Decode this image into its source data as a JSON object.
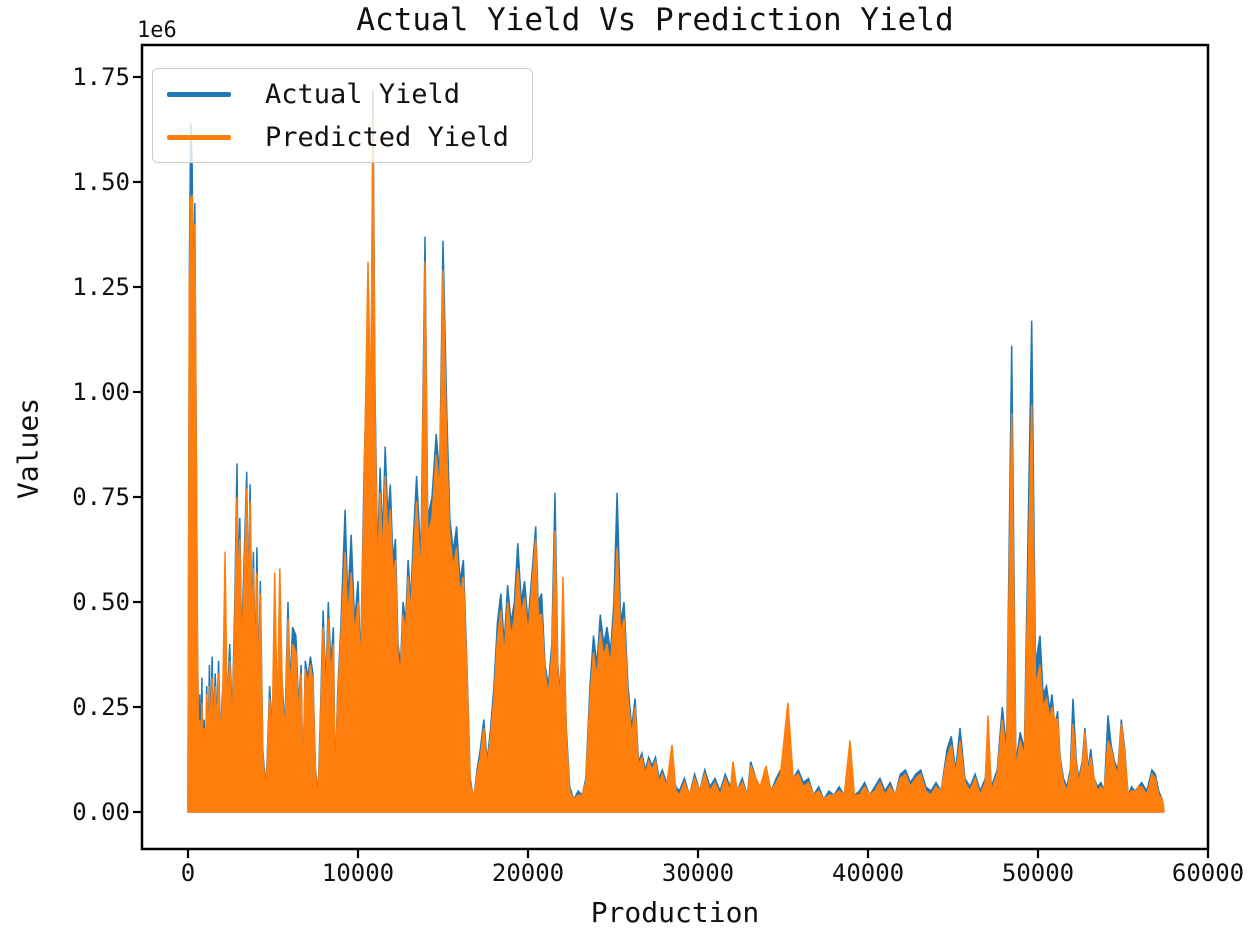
{
  "chart_data": {
    "type": "line",
    "title": "Actual Yield Vs Prediction Yield",
    "xlabel": "Production",
    "ylabel": "Values",
    "y_offset_label": "1e6",
    "y_unit_multiplier": 1000000,
    "grid": false,
    "x_ticks": [
      0,
      10000,
      20000,
      30000,
      40000,
      50000,
      60000
    ],
    "x_tick_labels": [
      "0",
      "10000",
      "20000",
      "30000",
      "40000",
      "50000",
      "60000"
    ],
    "y_ticks": [
      0,
      0.25,
      0.5,
      0.75,
      1.0,
      1.25,
      1.5,
      1.75
    ],
    "y_tick_labels": [
      "0.00",
      "0.25",
      "0.50",
      "0.75",
      "1.00",
      "1.25",
      "1.50",
      "1.75"
    ],
    "xlim": [
      -2870,
      60270
    ],
    "ylim": [
      -0.087,
      1.827
    ],
    "legend": {
      "position": "upper left",
      "entries": [
        {
          "label": "Actual Yield",
          "color": "#1f77b4"
        },
        {
          "label": "Predicted Yield",
          "color": "#ff7f0e"
        }
      ]
    },
    "series_names": [
      "Actual Yield",
      "Predicted Yield"
    ],
    "points_format": "[production_index, actual_yield_1e6, predicted_yield_1e6]",
    "points": [
      [
        0,
        0.05,
        0.04
      ],
      [
        80,
        1.3,
        1.25
      ],
      [
        160,
        1.64,
        1.46
      ],
      [
        240,
        1.55,
        1.47
      ],
      [
        320,
        1.2,
        1.18
      ],
      [
        400,
        1.45,
        1.4
      ],
      [
        480,
        0.9,
        0.88
      ],
      [
        560,
        0.4,
        0.38
      ],
      [
        640,
        0.12,
        0.1
      ],
      [
        700,
        0.28,
        0.22
      ],
      [
        760,
        0.08,
        0.07
      ],
      [
        820,
        0.32,
        0.26
      ],
      [
        880,
        0.12,
        0.11
      ],
      [
        950,
        0.22,
        0.2
      ],
      [
        1020,
        0.08,
        0.07
      ],
      [
        1100,
        0.3,
        0.28
      ],
      [
        1180,
        0.15,
        0.14
      ],
      [
        1260,
        0.35,
        0.3
      ],
      [
        1340,
        0.18,
        0.16
      ],
      [
        1420,
        0.37,
        0.32
      ],
      [
        1500,
        0.2,
        0.18
      ],
      [
        1600,
        0.33,
        0.3
      ],
      [
        1700,
        0.22,
        0.2
      ],
      [
        1800,
        0.36,
        0.33
      ],
      [
        1900,
        0.18,
        0.17
      ],
      [
        2050,
        0.3,
        0.28
      ],
      [
        2180,
        0.36,
        0.62
      ],
      [
        2300,
        0.25,
        0.24
      ],
      [
        2450,
        0.4,
        0.36
      ],
      [
        2600,
        0.22,
        0.2
      ],
      [
        2750,
        0.5,
        0.45
      ],
      [
        2880,
        0.83,
        0.75
      ],
      [
        2950,
        0.55,
        0.5
      ],
      [
        3050,
        0.7,
        0.65
      ],
      [
        3150,
        0.4,
        0.38
      ],
      [
        3300,
        0.6,
        0.55
      ],
      [
        3450,
        0.81,
        0.77
      ],
      [
        3550,
        0.5,
        0.48
      ],
      [
        3650,
        0.78,
        0.74
      ],
      [
        3750,
        0.45,
        0.42
      ],
      [
        3850,
        0.62,
        0.58
      ],
      [
        3950,
        0.35,
        0.33
      ],
      [
        4050,
        0.63,
        0.57
      ],
      [
        4150,
        0.3,
        0.28
      ],
      [
        4250,
        0.55,
        0.52
      ],
      [
        4400,
        0.15,
        0.13
      ],
      [
        4550,
        0.06,
        0.05
      ],
      [
        4650,
        0.12,
        0.11
      ],
      [
        4800,
        0.3,
        0.27
      ],
      [
        4950,
        0.2,
        0.18
      ],
      [
        5100,
        0.4,
        0.57
      ],
      [
        5250,
        0.25,
        0.23
      ],
      [
        5400,
        0.42,
        0.58
      ],
      [
        5550,
        0.3,
        0.28
      ],
      [
        5700,
        0.2,
        0.18
      ],
      [
        5880,
        0.5,
        0.46
      ],
      [
        6000,
        0.3,
        0.28
      ],
      [
        6150,
        0.44,
        0.4
      ],
      [
        6350,
        0.42,
        0.38
      ],
      [
        6500,
        0.25,
        0.23
      ],
      [
        6650,
        0.35,
        0.33
      ],
      [
        6760,
        0.07,
        0.06
      ],
      [
        6900,
        0.36,
        0.34
      ],
      [
        7050,
        0.32,
        0.3
      ],
      [
        7200,
        0.37,
        0.35
      ],
      [
        7350,
        0.33,
        0.31
      ],
      [
        7500,
        0.1,
        0.09
      ],
      [
        7650,
        0.04,
        0.03
      ],
      [
        7800,
        0.25,
        0.22
      ],
      [
        7950,
        0.48,
        0.44
      ],
      [
        8100,
        0.3,
        0.28
      ],
      [
        8250,
        0.5,
        0.46
      ],
      [
        8400,
        0.35,
        0.32
      ],
      [
        8550,
        0.44,
        0.4
      ],
      [
        8650,
        0.06,
        0.05
      ],
      [
        8800,
        0.28,
        0.26
      ],
      [
        9000,
        0.45,
        0.42
      ],
      [
        9240,
        0.72,
        0.62
      ],
      [
        9400,
        0.5,
        0.46
      ],
      [
        9600,
        0.66,
        0.57
      ],
      [
        9800,
        0.45,
        0.42
      ],
      [
        10000,
        0.55,
        0.5
      ],
      [
        10150,
        0.35,
        0.33
      ],
      [
        10350,
        0.8,
        0.75
      ],
      [
        10590,
        1.2,
        1.31
      ],
      [
        10750,
        0.9,
        0.95
      ],
      [
        10880,
        1.72,
        1.66
      ],
      [
        11000,
        1.0,
        0.95
      ],
      [
        11150,
        0.6,
        0.55
      ],
      [
        11300,
        0.82,
        0.76
      ],
      [
        11450,
        0.65,
        0.6
      ],
      [
        11600,
        0.87,
        0.8
      ],
      [
        11750,
        0.7,
        0.65
      ],
      [
        11900,
        0.78,
        0.72
      ],
      [
        12050,
        0.6,
        0.56
      ],
      [
        12200,
        0.65,
        0.6
      ],
      [
        12350,
        0.4,
        0.37
      ],
      [
        12500,
        0.35,
        0.33
      ],
      [
        12650,
        0.5,
        0.47
      ],
      [
        12800,
        0.45,
        0.42
      ],
      [
        12950,
        0.6,
        0.56
      ],
      [
        13100,
        0.5,
        0.47
      ],
      [
        13250,
        0.65,
        0.6
      ],
      [
        13450,
        0.8,
        0.74
      ],
      [
        13700,
        0.6,
        0.55
      ],
      [
        13940,
        1.37,
        1.31
      ],
      [
        14100,
        0.7,
        0.66
      ],
      [
        14350,
        0.75,
        0.7
      ],
      [
        14600,
        0.9,
        0.85
      ],
      [
        14800,
        0.8,
        0.76
      ],
      [
        15000,
        1.36,
        1.29
      ],
      [
        15230,
        0.94,
        0.85
      ],
      [
        15400,
        0.7,
        0.66
      ],
      [
        15600,
        0.62,
        0.58
      ],
      [
        15800,
        0.68,
        0.63
      ],
      [
        16000,
        0.55,
        0.52
      ],
      [
        16200,
        0.6,
        0.56
      ],
      [
        16400,
        0.36,
        0.34
      ],
      [
        16600,
        0.08,
        0.07
      ],
      [
        16800,
        0.03,
        0.03
      ],
      [
        17000,
        0.1,
        0.09
      ],
      [
        17200,
        0.15,
        0.13
      ],
      [
        17400,
        0.22,
        0.2
      ],
      [
        17600,
        0.12,
        0.11
      ],
      [
        17800,
        0.2,
        0.18
      ],
      [
        18000,
        0.3,
        0.27
      ],
      [
        18200,
        0.45,
        0.41
      ],
      [
        18400,
        0.52,
        0.48
      ],
      [
        18600,
        0.4,
        0.37
      ],
      [
        18800,
        0.54,
        0.5
      ],
      [
        19000,
        0.45,
        0.42
      ],
      [
        19200,
        0.5,
        0.46
      ],
      [
        19400,
        0.64,
        0.58
      ],
      [
        19600,
        0.5,
        0.47
      ],
      [
        19800,
        0.55,
        0.51
      ],
      [
        20000,
        0.45,
        0.42
      ],
      [
        20200,
        0.55,
        0.52
      ],
      [
        20450,
        0.68,
        0.65
      ],
      [
        20600,
        0.5,
        0.47
      ],
      [
        20800,
        0.52,
        0.47
      ],
      [
        21000,
        0.35,
        0.33
      ],
      [
        21200,
        0.3,
        0.28
      ],
      [
        21400,
        0.4,
        0.37
      ],
      [
        21590,
        0.76,
        0.67
      ],
      [
        21750,
        0.35,
        0.33
      ],
      [
        21900,
        0.28,
        0.26
      ],
      [
        22060,
        0.5,
        0.56
      ],
      [
        22250,
        0.2,
        0.18
      ],
      [
        22450,
        0.06,
        0.05
      ],
      [
        22700,
        0.03,
        0.03
      ],
      [
        22950,
        0.05,
        0.04
      ],
      [
        23200,
        0.04,
        0.04
      ],
      [
        23400,
        0.08,
        0.07
      ],
      [
        23650,
        0.3,
        0.27
      ],
      [
        23850,
        0.42,
        0.38
      ],
      [
        24050,
        0.35,
        0.32
      ],
      [
        24250,
        0.47,
        0.43
      ],
      [
        24450,
        0.4,
        0.37
      ],
      [
        24650,
        0.44,
        0.4
      ],
      [
        24850,
        0.38,
        0.35
      ],
      [
        25050,
        0.5,
        0.46
      ],
      [
        25240,
        0.76,
        0.63
      ],
      [
        25450,
        0.45,
        0.42
      ],
      [
        25650,
        0.5,
        0.46
      ],
      [
        25880,
        0.3,
        0.27
      ],
      [
        26100,
        0.2,
        0.18
      ],
      [
        26300,
        0.27,
        0.25
      ],
      [
        26500,
        0.12,
        0.11
      ],
      [
        26700,
        0.14,
        0.13
      ],
      [
        26900,
        0.1,
        0.09
      ],
      [
        27100,
        0.13,
        0.12
      ],
      [
        27300,
        0.11,
        0.1
      ],
      [
        27500,
        0.13,
        0.12
      ],
      [
        27700,
        0.08,
        0.07
      ],
      [
        27900,
        0.1,
        0.09
      ],
      [
        28150,
        0.07,
        0.06
      ],
      [
        28470,
        0.1,
        0.16
      ],
      [
        28700,
        0.06,
        0.05
      ],
      [
        28900,
        0.05,
        0.04
      ],
      [
        29200,
        0.08,
        0.07
      ],
      [
        29500,
        0.04,
        0.04
      ],
      [
        29800,
        0.09,
        0.08
      ],
      [
        30100,
        0.05,
        0.05
      ],
      [
        30400,
        0.1,
        0.09
      ],
      [
        30700,
        0.06,
        0.05
      ],
      [
        31000,
        0.08,
        0.07
      ],
      [
        31300,
        0.05,
        0.04
      ],
      [
        31600,
        0.09,
        0.08
      ],
      [
        31900,
        0.06,
        0.05
      ],
      [
        32060,
        0.09,
        0.12
      ],
      [
        32300,
        0.05,
        0.05
      ],
      [
        32600,
        0.08,
        0.07
      ],
      [
        32900,
        0.04,
        0.04
      ],
      [
        33100,
        0.12,
        0.11
      ],
      [
        33400,
        0.08,
        0.08
      ],
      [
        33650,
        0.06,
        0.06
      ],
      [
        34000,
        0.07,
        0.11
      ],
      [
        34300,
        0.05,
        0.05
      ],
      [
        34600,
        0.08,
        0.07
      ],
      [
        34850,
        0.1,
        0.09
      ],
      [
        35290,
        0.1,
        0.26
      ],
      [
        35600,
        0.08,
        0.08
      ],
      [
        35900,
        0.1,
        0.09
      ],
      [
        36200,
        0.07,
        0.06
      ],
      [
        36500,
        0.08,
        0.07
      ],
      [
        36800,
        0.04,
        0.04
      ],
      [
        37100,
        0.06,
        0.05
      ],
      [
        37400,
        0.03,
        0.03
      ],
      [
        37700,
        0.05,
        0.04
      ],
      [
        38000,
        0.04,
        0.04
      ],
      [
        38300,
        0.06,
        0.05
      ],
      [
        38600,
        0.04,
        0.04
      ],
      [
        38940,
        0.06,
        0.17
      ],
      [
        39200,
        0.04,
        0.04
      ],
      [
        39500,
        0.05,
        0.04
      ],
      [
        39800,
        0.07,
        0.06
      ],
      [
        40100,
        0.04,
        0.04
      ],
      [
        40400,
        0.06,
        0.05
      ],
      [
        40700,
        0.08,
        0.07
      ],
      [
        41000,
        0.05,
        0.04
      ],
      [
        41300,
        0.07,
        0.06
      ],
      [
        41600,
        0.04,
        0.04
      ],
      [
        41900,
        0.09,
        0.08
      ],
      [
        42200,
        0.1,
        0.09
      ],
      [
        42500,
        0.07,
        0.06
      ],
      [
        42800,
        0.09,
        0.08
      ],
      [
        43100,
        0.1,
        0.09
      ],
      [
        43400,
        0.06,
        0.05
      ],
      [
        43700,
        0.05,
        0.04
      ],
      [
        44000,
        0.07,
        0.06
      ],
      [
        44300,
        0.05,
        0.05
      ],
      [
        44650,
        0.15,
        0.13
      ],
      [
        44900,
        0.18,
        0.16
      ],
      [
        45150,
        0.1,
        0.09
      ],
      [
        45410,
        0.2,
        0.17
      ],
      [
        45700,
        0.08,
        0.07
      ],
      [
        46000,
        0.06,
        0.05
      ],
      [
        46300,
        0.09,
        0.08
      ],
      [
        46600,
        0.05,
        0.04
      ],
      [
        46900,
        0.08,
        0.07
      ],
      [
        47060,
        0.2,
        0.23
      ],
      [
        47250,
        0.06,
        0.05
      ],
      [
        47600,
        0.1,
        0.09
      ],
      [
        47900,
        0.25,
        0.22
      ],
      [
        48150,
        0.15,
        0.13
      ],
      [
        48450,
        1.11,
        0.95
      ],
      [
        48700,
        0.12,
        0.1
      ],
      [
        48950,
        0.19,
        0.17
      ],
      [
        49200,
        0.15,
        0.13
      ],
      [
        49630,
        1.17,
        0.97
      ],
      [
        49850,
        0.35,
        0.3
      ],
      [
        50120,
        0.42,
        0.35
      ],
      [
        50300,
        0.28,
        0.25
      ],
      [
        50500,
        0.3,
        0.27
      ],
      [
        50700,
        0.24,
        0.22
      ],
      [
        50820,
        0.28,
        0.25
      ],
      [
        51000,
        0.2,
        0.22
      ],
      [
        51150,
        0.24,
        0.22
      ],
      [
        51300,
        0.13,
        0.12
      ],
      [
        51500,
        0.08,
        0.07
      ],
      [
        51700,
        0.06,
        0.05
      ],
      [
        51900,
        0.1,
        0.09
      ],
      [
        52060,
        0.27,
        0.21
      ],
      [
        52250,
        0.12,
        0.11
      ],
      [
        52400,
        0.08,
        0.07
      ],
      [
        52600,
        0.12,
        0.11
      ],
      [
        52760,
        0.2,
        0.19
      ],
      [
        52950,
        0.1,
        0.09
      ],
      [
        53100,
        0.15,
        0.13
      ],
      [
        53300,
        0.08,
        0.08
      ],
      [
        53500,
        0.06,
        0.05
      ],
      [
        53700,
        0.07,
        0.06
      ],
      [
        53900,
        0.05,
        0.05
      ],
      [
        54120,
        0.23,
        0.17
      ],
      [
        54300,
        0.16,
        0.15
      ],
      [
        54500,
        0.12,
        0.11
      ],
      [
        54700,
        0.1,
        0.09
      ],
      [
        54900,
        0.22,
        0.21
      ],
      [
        55100,
        0.15,
        0.14
      ],
      [
        55300,
        0.04,
        0.04
      ],
      [
        55500,
        0.06,
        0.05
      ],
      [
        55700,
        0.05,
        0.05
      ],
      [
        55900,
        0.06,
        0.06
      ],
      [
        56100,
        0.07,
        0.06
      ],
      [
        56400,
        0.05,
        0.04
      ],
      [
        56700,
        0.1,
        0.09
      ],
      [
        56900,
        0.09,
        0.08
      ],
      [
        57100,
        0.05,
        0.04
      ],
      [
        57300,
        0.03,
        0.03
      ],
      [
        57400,
        0.01,
        0.01
      ]
    ],
    "colors": {
      "actual": "#1f77b4",
      "predicted": "#ff7f0e",
      "axis": "#000000",
      "text": "#111111",
      "legend_border": "#cccccc",
      "background": "#ffffff"
    }
  }
}
